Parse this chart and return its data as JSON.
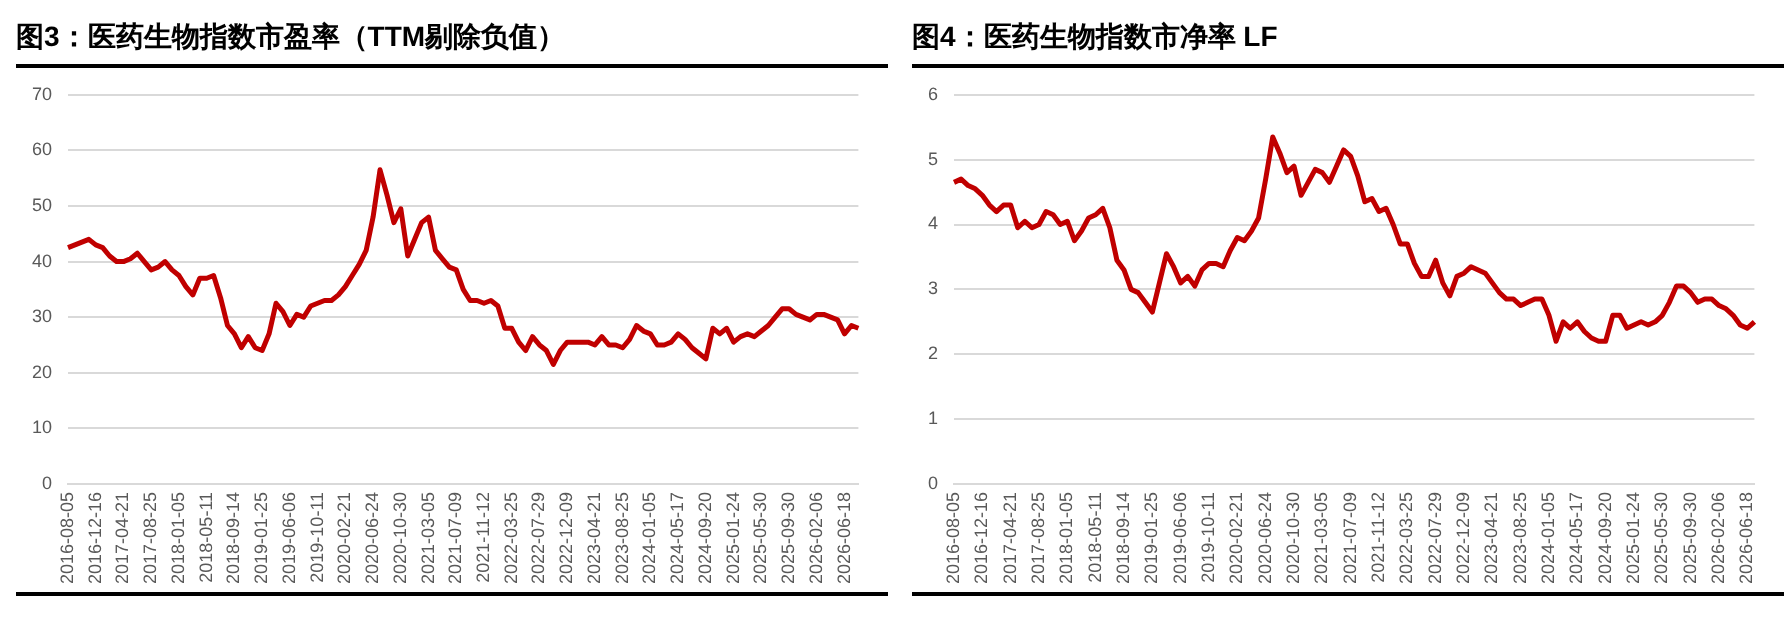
{
  "chart_data": [
    {
      "type": "line",
      "title": "图3：医药生物指数市盈率（TTM剔除负值）",
      "categories": [
        "2016-08-05",
        null,
        null,
        null,
        "2016-12-16",
        null,
        null,
        null,
        "2017-04-21",
        null,
        null,
        null,
        "2017-08-25",
        null,
        null,
        null,
        "2018-01-05",
        null,
        null,
        null,
        "2018-05-11",
        null,
        null,
        null,
        "2018-09-14",
        null,
        null,
        null,
        "2019-01-25",
        null,
        null,
        null,
        "2019-06-06",
        null,
        null,
        null,
        "2019-10-11",
        null,
        null,
        null,
        "2020-02-21",
        null,
        null,
        null,
        "2020-06-24",
        null,
        null,
        null,
        "2020-10-30",
        null,
        null,
        null,
        "2021-03-05",
        null,
        null,
        null,
        "2021-07-09",
        null,
        null,
        null,
        "2021-11-12",
        null,
        null,
        null,
        "2022-03-25",
        null,
        null,
        null,
        "2022-07-29",
        null,
        null,
        null,
        "2022-12-09",
        null,
        null,
        null,
        "2023-04-21",
        null,
        null,
        null,
        "2023-08-25",
        null,
        null,
        null,
        "2024-01-05",
        null,
        null,
        null,
        "2024-05-17",
        null,
        null,
        null,
        "2024-09-20",
        null,
        null,
        null,
        "2025-01-24",
        null,
        null,
        null,
        "2025-05-30",
        null,
        null,
        null,
        "2025-09-30",
        null,
        null,
        null,
        "2026-02-06",
        null,
        null,
        null,
        "2026-06-18",
        null,
        null
      ],
      "series": [
        {
          "color": "#c00000",
          "values": [
            42.5,
            43,
            43.5,
            44,
            43,
            42.5,
            41,
            40,
            40,
            40.5,
            41.5,
            40,
            38.5,
            39,
            40,
            38.5,
            37.5,
            35.5,
            34,
            37,
            37,
            37.5,
            33.5,
            28.5,
            27,
            24.5,
            26.5,
            24.5,
            24,
            27,
            32.5,
            31,
            28.5,
            30.5,
            30,
            32,
            32.5,
            33,
            33,
            34,
            35.5,
            37.5,
            39.5,
            42,
            48,
            56.5,
            52,
            47,
            49.5,
            41,
            44,
            47,
            48,
            42,
            40.5,
            39,
            38.5,
            35,
            33,
            33,
            32.5,
            33,
            32,
            28,
            28,
            25.5,
            24,
            26.5,
            25,
            24,
            21.5,
            24,
            25.5,
            25.5,
            25.5,
            25.5,
            25,
            26.5,
            25,
            25,
            24.5,
            26,
            28.5,
            27.5,
            27,
            25,
            25,
            25.5,
            27,
            26,
            24.5,
            23.5,
            22.5,
            28,
            27,
            28,
            25.5,
            26.5,
            27,
            26.5,
            27.5,
            28.5,
            30,
            31.5,
            31.5,
            30.5,
            30,
            29.5,
            30.5,
            30.5,
            30,
            29.5,
            27,
            28.5,
            28
          ]
        }
      ],
      "ylim": [
        0,
        70
      ],
      "yticks": [
        0,
        10,
        20,
        30,
        40,
        50,
        60,
        70
      ],
      "grid": "y"
    },
    {
      "type": "line",
      "title": "图4：医药生物指数市净率 LF",
      "categories": [
        "2016-08-05",
        null,
        null,
        null,
        "2016-12-16",
        null,
        null,
        null,
        "2017-04-21",
        null,
        null,
        null,
        "2017-08-25",
        null,
        null,
        null,
        "2018-01-05",
        null,
        null,
        null,
        "2018-05-11",
        null,
        null,
        null,
        "2018-09-14",
        null,
        null,
        null,
        "2019-01-25",
        null,
        null,
        null,
        "2019-06-06",
        null,
        null,
        null,
        "2019-10-11",
        null,
        null,
        null,
        "2020-02-21",
        null,
        null,
        null,
        "2020-06-24",
        null,
        null,
        null,
        "2020-10-30",
        null,
        null,
        null,
        "2021-03-05",
        null,
        null,
        null,
        "2021-07-09",
        null,
        null,
        null,
        "2021-11-12",
        null,
        null,
        null,
        "2022-03-25",
        null,
        null,
        null,
        "2022-07-29",
        null,
        null,
        null,
        "2022-12-09",
        null,
        null,
        null,
        "2023-04-21",
        null,
        null,
        null,
        "2023-08-25",
        null,
        null,
        null,
        "2024-01-05",
        null,
        null,
        null,
        "2024-05-17",
        null,
        null,
        null,
        "2024-09-20",
        null,
        null,
        null,
        "2025-01-24",
        null,
        null,
        null,
        "2025-05-30",
        null,
        null,
        null,
        "2025-09-30",
        null,
        null,
        null,
        "2026-02-06",
        null,
        null,
        null,
        "2026-06-18",
        null
      ],
      "series": [
        {
          "color": "#c00000",
          "values": [
            4.65,
            4.7,
            4.6,
            4.55,
            4.45,
            4.3,
            4.2,
            4.3,
            4.3,
            3.95,
            4.05,
            3.95,
            4,
            4.2,
            4.15,
            4,
            4.05,
            3.75,
            3.9,
            4.1,
            4.15,
            4.25,
            3.95,
            3.45,
            3.3,
            3,
            2.95,
            2.8,
            2.65,
            3.1,
            3.55,
            3.35,
            3.1,
            3.2,
            3.05,
            3.3,
            3.4,
            3.4,
            3.35,
            3.6,
            3.8,
            3.75,
            3.9,
            4.1,
            4.7,
            5.35,
            5.1,
            4.8,
            4.9,
            4.45,
            4.65,
            4.85,
            4.8,
            4.65,
            4.9,
            5.15,
            5.05,
            4.75,
            4.35,
            4.4,
            4.2,
            4.25,
            4,
            3.7,
            3.7,
            3.4,
            3.2,
            3.2,
            3.45,
            3.1,
            2.9,
            3.2,
            3.25,
            3.35,
            3.3,
            3.25,
            3.1,
            2.95,
            2.85,
            2.85,
            2.75,
            2.8,
            2.85,
            2.85,
            2.6,
            2.2,
            2.5,
            2.4,
            2.5,
            2.35,
            2.25,
            2.2,
            2.2,
            2.6,
            2.6,
            2.4,
            2.45,
            2.5,
            2.45,
            2.5,
            2.6,
            2.8,
            3.05,
            3.05,
            2.95,
            2.8,
            2.85,
            2.85,
            2.75,
            2.7,
            2.6,
            2.45,
            2.4,
            2.5
          ]
        }
      ],
      "ylim": [
        0,
        6
      ],
      "yticks": [
        0,
        1,
        2,
        3,
        4,
        5,
        6
      ],
      "grid": "y"
    }
  ]
}
